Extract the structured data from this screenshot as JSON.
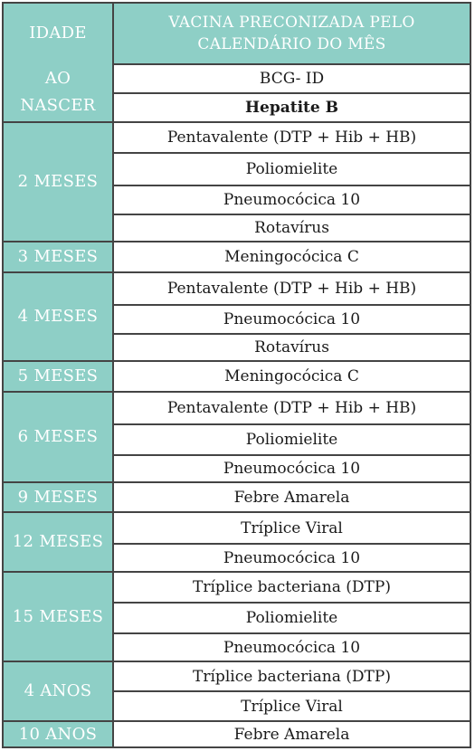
{
  "header": {
    "age_lines": [
      "IDADE",
      "AO",
      "NASCER"
    ],
    "vaccine_title_line1": "VACINA PRECONIZADA PELO",
    "vaccine_title_line2": "CALENDÁRIO DO MÊS"
  },
  "ages": [
    {
      "label": "2 MESES"
    },
    {
      "label": "3 MESES"
    },
    {
      "label": "4 MESES"
    },
    {
      "label": "5 MESES"
    },
    {
      "label": "6 MESES"
    },
    {
      "label": "9 MESES"
    },
    {
      "label": "12 MESES"
    },
    {
      "label": "15 MESES"
    },
    {
      "label": "4 ANOS"
    },
    {
      "label": "10 ANOS"
    }
  ],
  "vaccines": [
    "BCG- ID",
    "Hepatite B",
    "Pentavalente (DTP + Hib + HB)",
    "Poliomielite",
    "Pneumocócica 10",
    "Rotavírus",
    "Meningocócica C",
    "Pentavalente (DTP + Hib + HB)",
    "Pneumocócica 10",
    "Rotavírus",
    "Meningocócica C",
    "Pentavalente (DTP + Hib + HB)",
    "Poliomielite",
    "Pneumocócica 10",
    "Febre Amarela",
    "Tríplice Viral",
    "Pneumocócica 10",
    "Tríplice bacteriana (DTP)",
    "Poliomielite",
    "Pneumocócica 10",
    "Tríplice bacteriana (DTP)",
    "Tríplice Viral",
    "Febre Amarela"
  ],
  "colors": {
    "header_bg": "#8ecfc6",
    "header_text": "#ffffff",
    "border": "#444444"
  }
}
